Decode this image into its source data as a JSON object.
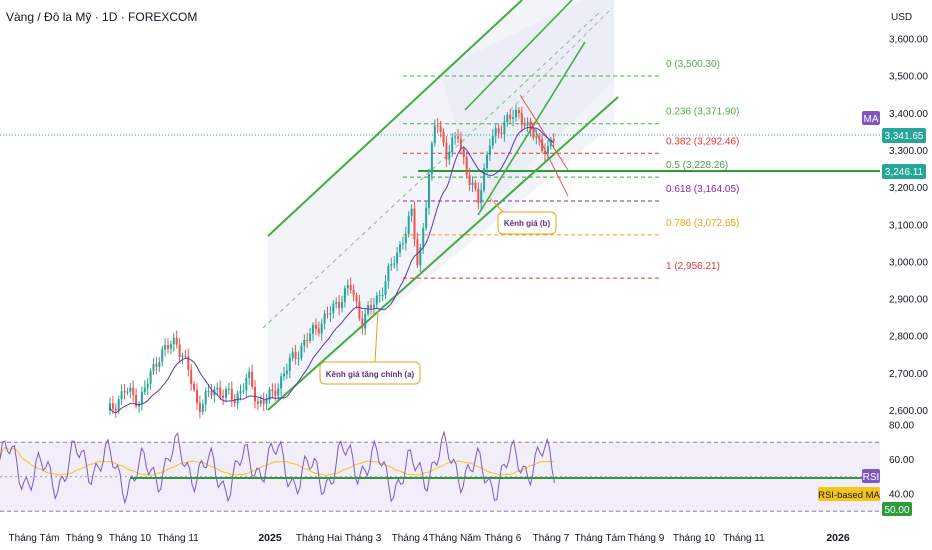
{
  "header": {
    "title": "Vàng / Đô la Mỹ · 1D · FOREXCOM"
  },
  "chart_data": [
    {
      "type": "candlestick",
      "y_axis": {
        "unit": "USD",
        "ticks": [
          "3,600.00",
          "3,500.00",
          "3,400.00",
          "3,300.00",
          "3,200.00",
          "3,100.00",
          "3,000.00",
          "2,900.00",
          "2,800.00",
          "2,700.00",
          "2,600.00"
        ],
        "ylim": [
          2580,
          3660
        ]
      },
      "x_axis": {
        "ticks": [
          "Tháng Tám",
          "Tháng 9",
          "Tháng 10",
          "Tháng 11",
          "2025",
          "Tháng Hai",
          "Tháng 3",
          "Tháng 4",
          "Tháng Năm",
          "Tháng 6",
          "Tháng 7",
          "Tháng Tám",
          "Tháng 9",
          "Tháng 10",
          "Tháng 11",
          "2026"
        ],
        "bold_ticks": [
          "2025",
          "2026"
        ]
      },
      "price_labels": {
        "last": {
          "value": "3,341.65",
          "color": "#26a69a"
        },
        "line": {
          "value": "3,246.11",
          "color": "#26a69a"
        },
        "ma_badge": {
          "text": "MA",
          "color": "#7e57c2"
        }
      },
      "fibonacci": [
        {
          "label": "0 (3,500.30)",
          "price": 3500.3,
          "color": "#4caf50"
        },
        {
          "label": "0.236 (3,371.90)",
          "price": 3371.9,
          "color": "#4caf50"
        },
        {
          "label": "0.382 (3,292.46)",
          "price": 3292.46,
          "color": "#e53935"
        },
        {
          "label": "0.5 (3,228.26)",
          "price": 3228.26,
          "color": "#43a047"
        },
        {
          "label": "0.618 (3,164.05)",
          "price": 3164.05,
          "color": "#8e24aa"
        },
        {
          "label": "0.786 (3,072.65)",
          "price": 3072.65,
          "color": "#f59e0b"
        },
        {
          "label": "1 (2,956.21)",
          "price": 2956.21,
          "color": "#e53935"
        }
      ],
      "annotations": [
        {
          "text": "Kênh giá tăng chính (a)"
        },
        {
          "text": "Kênh giá (b)"
        }
      ],
      "colors": {
        "up": "#26a69a",
        "down": "#ef5350",
        "ma": "#5e35b1",
        "channel": "#3fae3f"
      }
    },
    {
      "type": "line",
      "name": "RSI",
      "y_axis": {
        "ticks": [
          "80.00",
          "60.00",
          "40.00"
        ],
        "ylim": [
          25,
          85
        ]
      },
      "bands": [
        70,
        30
      ],
      "labels": {
        "rsi": "RSI",
        "rsi_ma": "RSI-based MA",
        "fifty": "50.00"
      },
      "colors": {
        "rsi": "#7e57c2",
        "rsi_ma": "#f5c518",
        "band_fill": "#ede7f6"
      }
    }
  ]
}
